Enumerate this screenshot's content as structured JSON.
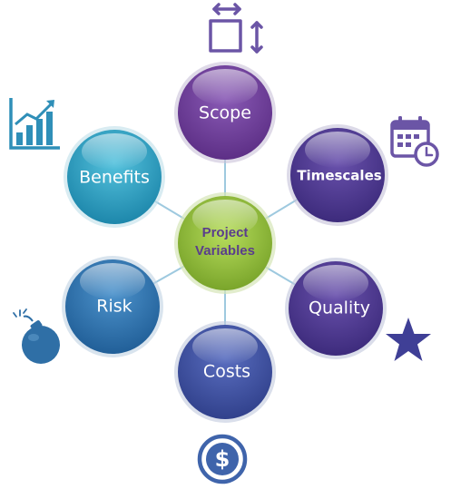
{
  "center": {
    "line1": "Project",
    "line2": "Variables"
  },
  "nodes": [
    {
      "label": "Scope"
    },
    {
      "label": "Timescales"
    },
    {
      "label": "Quality"
    },
    {
      "label": "Costs"
    },
    {
      "label": "Risk"
    },
    {
      "label": "Benefits"
    }
  ],
  "icons": [
    {
      "name": "resize-arrows-icon",
      "near": "Scope"
    },
    {
      "name": "calendar-clock-icon",
      "near": "Timescales"
    },
    {
      "name": "star-icon",
      "near": "Quality"
    },
    {
      "name": "dollar-coin-icon",
      "near": "Costs"
    },
    {
      "name": "bomb-icon",
      "near": "Risk"
    },
    {
      "name": "bar-chart-growth-icon",
      "near": "Benefits"
    }
  ],
  "colors": {
    "center": "#8ab833",
    "purple": "#6f3f97",
    "indigo": "#4a3a8f",
    "blue_dark": "#3c4f9c",
    "blue": "#2f74ad",
    "teal": "#28a2c4",
    "icon_purple": "#6b55a6",
    "icon_blue": "#3f64ab",
    "icon_teal": "#2f8fb8"
  }
}
